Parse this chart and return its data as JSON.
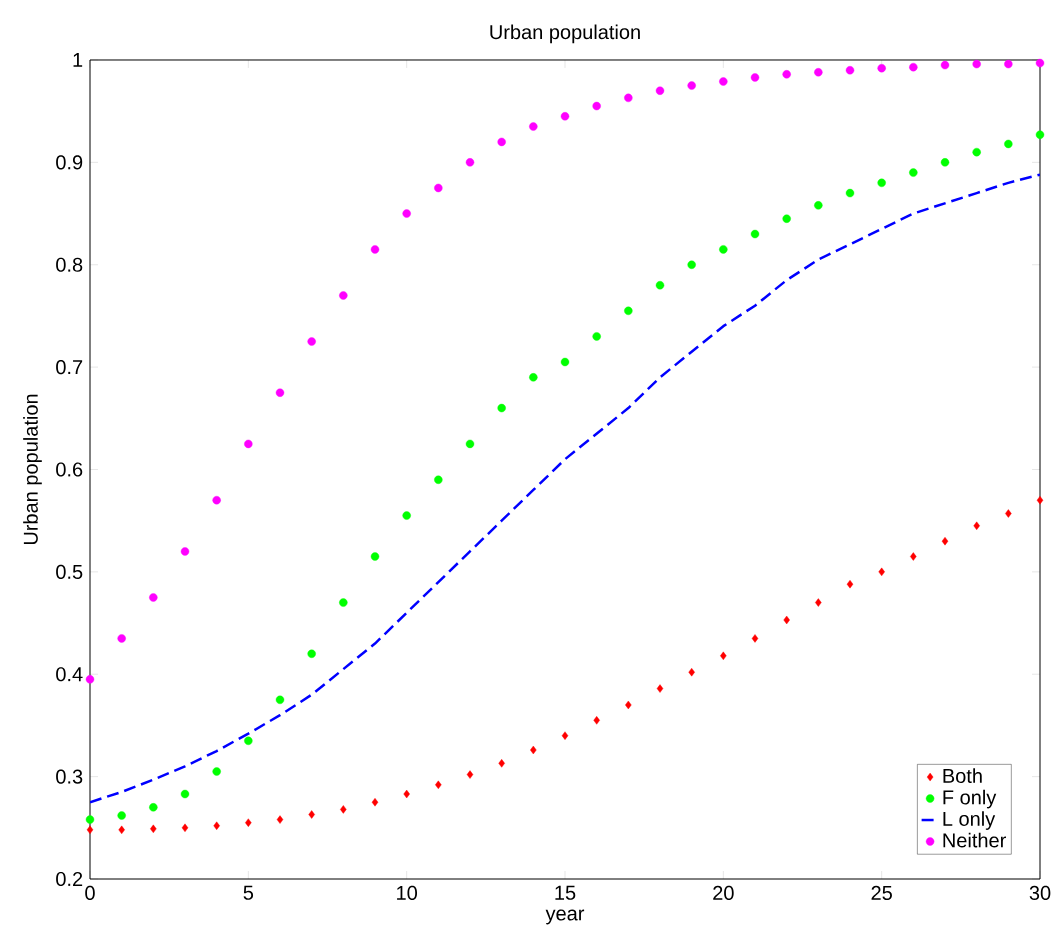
{
  "chart_data": {
    "type": "line",
    "title": "Urban population",
    "xlabel": "year",
    "ylabel": "Urban population",
    "x": [
      0,
      1,
      2,
      3,
      4,
      5,
      6,
      7,
      8,
      9,
      10,
      11,
      12,
      13,
      14,
      15,
      16,
      17,
      18,
      19,
      20,
      21,
      22,
      23,
      24,
      25,
      26,
      27,
      28,
      29,
      30
    ],
    "series": [
      {
        "name": "Both",
        "type": "scatter",
        "marker": "diamond",
        "color": "#ff0000",
        "values": [
          0.248,
          0.248,
          0.249,
          0.25,
          0.252,
          0.255,
          0.258,
          0.263,
          0.268,
          0.275,
          0.283,
          0.292,
          0.302,
          0.313,
          0.326,
          0.34,
          0.355,
          0.37,
          0.386,
          0.402,
          0.418,
          0.435,
          0.453,
          0.47,
          0.488,
          0.5,
          0.515,
          0.53,
          0.545,
          0.557,
          0.57
        ]
      },
      {
        "name": "F only",
        "type": "scatter",
        "marker": "circle",
        "color": "#00ff00",
        "values": [
          0.258,
          0.262,
          0.27,
          0.283,
          0.305,
          0.335,
          0.375,
          0.42,
          0.47,
          0.515,
          0.555,
          0.59,
          0.625,
          0.66,
          0.69,
          0.705,
          0.73,
          0.755,
          0.78,
          0.8,
          0.815,
          0.83,
          0.845,
          0.858,
          0.87,
          0.88,
          0.89,
          0.9,
          0.91,
          0.918,
          0.927
        ]
      },
      {
        "name": "L only",
        "type": "line",
        "marker": "none",
        "line_style": "dashed",
        "color": "#0000ff",
        "values": [
          0.275,
          0.285,
          0.297,
          0.31,
          0.325,
          0.342,
          0.36,
          0.38,
          0.405,
          0.43,
          0.46,
          0.49,
          0.52,
          0.55,
          0.58,
          0.61,
          0.635,
          0.66,
          0.69,
          0.715,
          0.74,
          0.76,
          0.785,
          0.805,
          0.82,
          0.835,
          0.85,
          0.86,
          0.87,
          0.88,
          0.888
        ]
      },
      {
        "name": "Neither",
        "type": "scatter",
        "marker": "circle",
        "color": "#ff00ff",
        "values": [
          0.395,
          0.435,
          0.475,
          0.52,
          0.57,
          0.625,
          0.675,
          0.725,
          0.77,
          0.815,
          0.85,
          0.875,
          0.9,
          0.92,
          0.935,
          0.945,
          0.955,
          0.963,
          0.97,
          0.975,
          0.979,
          0.983,
          0.986,
          0.988,
          0.99,
          0.992,
          0.993,
          0.995,
          0.996,
          0.996,
          0.997
        ]
      }
    ],
    "xlim": [
      0,
      30
    ],
    "ylim": [
      0.2,
      1
    ],
    "xticks": [
      0,
      5,
      10,
      15,
      20,
      25,
      30
    ],
    "yticks": [
      0.2,
      0.3,
      0.4,
      0.5,
      0.6,
      0.7,
      0.8,
      0.9,
      1
    ],
    "grid": false,
    "legend": "bottom right"
  }
}
